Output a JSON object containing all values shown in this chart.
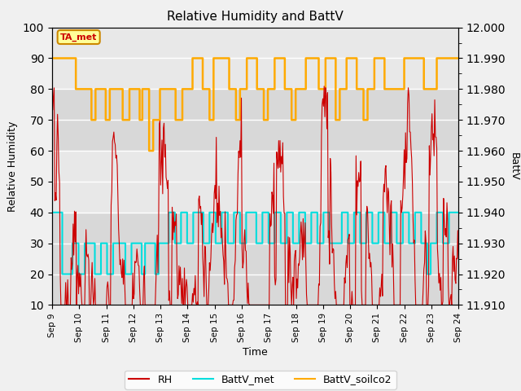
{
  "title": "Relative Humidity and BattV",
  "xlabel": "Time",
  "ylabel_left": "Relative Humidity",
  "ylabel_right": "BattV",
  "annotation_text": "TA_met",
  "ylim_left": [
    10,
    100
  ],
  "ylim_right": [
    11.91,
    12.0
  ],
  "yticks_left": [
    10,
    20,
    30,
    40,
    50,
    60,
    70,
    80,
    90,
    100
  ],
  "yticks_right": [
    11.91,
    11.92,
    11.93,
    11.94,
    11.95,
    11.96,
    11.97,
    11.98,
    11.99,
    12.0
  ],
  "xtick_labels": [
    "Sep 9",
    "Sep 10",
    "Sep 11",
    "Sep 12",
    "Sep 13",
    "Sep 14",
    "Sep 15",
    "Sep 16",
    "Sep 17",
    "Sep 18",
    "Sep 19",
    "Sep 20",
    "Sep 21",
    "Sep 22",
    "Sep 23",
    "Sep 24"
  ],
  "xtick_positions": [
    0,
    1,
    2,
    3,
    4,
    5,
    6,
    7,
    8,
    9,
    10,
    11,
    12,
    13,
    14,
    15
  ],
  "color_rh": "#cc0000",
  "color_battv_met": "#00dddd",
  "color_battv_soilco2": "#ffaa00",
  "legend_labels": [
    "RH",
    "BattV_met",
    "BattV_soilco2"
  ],
  "background_color": "#f0f0f0",
  "plot_bg_color": "#d8d8d8",
  "grid_color": "#ffffff",
  "band1_color": "#e8e8e8",
  "annotation_bg": "#ffff99",
  "annotation_border": "#cc8800",
  "annotation_text_color": "#cc0000"
}
